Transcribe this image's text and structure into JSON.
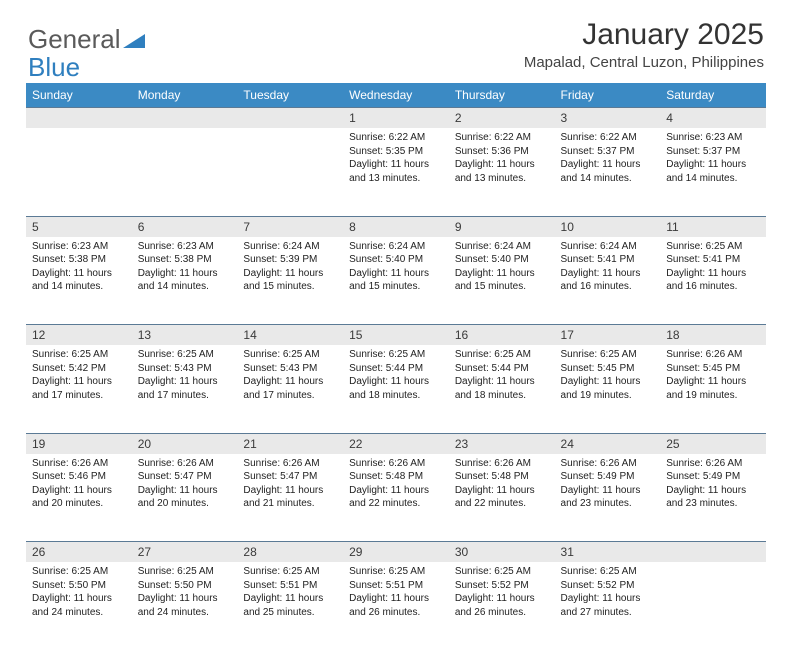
{
  "logo": {
    "word1": "General",
    "word2": "Blue"
  },
  "title": "January 2025",
  "subtitle": "Mapalad, Central Luzon, Philippines",
  "colors": {
    "header_bg": "#3b8ac4",
    "header_text": "#ffffff",
    "daynum_bg": "#e9e9e9",
    "daynum_border": "#5b7a95",
    "logo_gray": "#5a5a5a",
    "logo_blue": "#2f7fbf"
  },
  "weekdays": [
    "Sunday",
    "Monday",
    "Tuesday",
    "Wednesday",
    "Thursday",
    "Friday",
    "Saturday"
  ],
  "weeks": [
    {
      "nums": [
        "",
        "",
        "",
        "1",
        "2",
        "3",
        "4"
      ],
      "cells": [
        null,
        null,
        null,
        {
          "sunrise": "6:22 AM",
          "sunset": "5:35 PM",
          "daylight": "11 hours and 13 minutes."
        },
        {
          "sunrise": "6:22 AM",
          "sunset": "5:36 PM",
          "daylight": "11 hours and 13 minutes."
        },
        {
          "sunrise": "6:22 AM",
          "sunset": "5:37 PM",
          "daylight": "11 hours and 14 minutes."
        },
        {
          "sunrise": "6:23 AM",
          "sunset": "5:37 PM",
          "daylight": "11 hours and 14 minutes."
        }
      ]
    },
    {
      "nums": [
        "5",
        "6",
        "7",
        "8",
        "9",
        "10",
        "11"
      ],
      "cells": [
        {
          "sunrise": "6:23 AM",
          "sunset": "5:38 PM",
          "daylight": "11 hours and 14 minutes."
        },
        {
          "sunrise": "6:23 AM",
          "sunset": "5:38 PM",
          "daylight": "11 hours and 14 minutes."
        },
        {
          "sunrise": "6:24 AM",
          "sunset": "5:39 PM",
          "daylight": "11 hours and 15 minutes."
        },
        {
          "sunrise": "6:24 AM",
          "sunset": "5:40 PM",
          "daylight": "11 hours and 15 minutes."
        },
        {
          "sunrise": "6:24 AM",
          "sunset": "5:40 PM",
          "daylight": "11 hours and 15 minutes."
        },
        {
          "sunrise": "6:24 AM",
          "sunset": "5:41 PM",
          "daylight": "11 hours and 16 minutes."
        },
        {
          "sunrise": "6:25 AM",
          "sunset": "5:41 PM",
          "daylight": "11 hours and 16 minutes."
        }
      ]
    },
    {
      "nums": [
        "12",
        "13",
        "14",
        "15",
        "16",
        "17",
        "18"
      ],
      "cells": [
        {
          "sunrise": "6:25 AM",
          "sunset": "5:42 PM",
          "daylight": "11 hours and 17 minutes."
        },
        {
          "sunrise": "6:25 AM",
          "sunset": "5:43 PM",
          "daylight": "11 hours and 17 minutes."
        },
        {
          "sunrise": "6:25 AM",
          "sunset": "5:43 PM",
          "daylight": "11 hours and 17 minutes."
        },
        {
          "sunrise": "6:25 AM",
          "sunset": "5:44 PM",
          "daylight": "11 hours and 18 minutes."
        },
        {
          "sunrise": "6:25 AM",
          "sunset": "5:44 PM",
          "daylight": "11 hours and 18 minutes."
        },
        {
          "sunrise": "6:25 AM",
          "sunset": "5:45 PM",
          "daylight": "11 hours and 19 minutes."
        },
        {
          "sunrise": "6:26 AM",
          "sunset": "5:45 PM",
          "daylight": "11 hours and 19 minutes."
        }
      ]
    },
    {
      "nums": [
        "19",
        "20",
        "21",
        "22",
        "23",
        "24",
        "25"
      ],
      "cells": [
        {
          "sunrise": "6:26 AM",
          "sunset": "5:46 PM",
          "daylight": "11 hours and 20 minutes."
        },
        {
          "sunrise": "6:26 AM",
          "sunset": "5:47 PM",
          "daylight": "11 hours and 20 minutes."
        },
        {
          "sunrise": "6:26 AM",
          "sunset": "5:47 PM",
          "daylight": "11 hours and 21 minutes."
        },
        {
          "sunrise": "6:26 AM",
          "sunset": "5:48 PM",
          "daylight": "11 hours and 22 minutes."
        },
        {
          "sunrise": "6:26 AM",
          "sunset": "5:48 PM",
          "daylight": "11 hours and 22 minutes."
        },
        {
          "sunrise": "6:26 AM",
          "sunset": "5:49 PM",
          "daylight": "11 hours and 23 minutes."
        },
        {
          "sunrise": "6:26 AM",
          "sunset": "5:49 PM",
          "daylight": "11 hours and 23 minutes."
        }
      ]
    },
    {
      "nums": [
        "26",
        "27",
        "28",
        "29",
        "30",
        "31",
        ""
      ],
      "cells": [
        {
          "sunrise": "6:25 AM",
          "sunset": "5:50 PM",
          "daylight": "11 hours and 24 minutes."
        },
        {
          "sunrise": "6:25 AM",
          "sunset": "5:50 PM",
          "daylight": "11 hours and 24 minutes."
        },
        {
          "sunrise": "6:25 AM",
          "sunset": "5:51 PM",
          "daylight": "11 hours and 25 minutes."
        },
        {
          "sunrise": "6:25 AM",
          "sunset": "5:51 PM",
          "daylight": "11 hours and 26 minutes."
        },
        {
          "sunrise": "6:25 AM",
          "sunset": "5:52 PM",
          "daylight": "11 hours and 26 minutes."
        },
        {
          "sunrise": "6:25 AM",
          "sunset": "5:52 PM",
          "daylight": "11 hours and 27 minutes."
        },
        null
      ]
    }
  ],
  "labels": {
    "sunrise": "Sunrise:",
    "sunset": "Sunset:",
    "daylight": "Daylight:"
  }
}
